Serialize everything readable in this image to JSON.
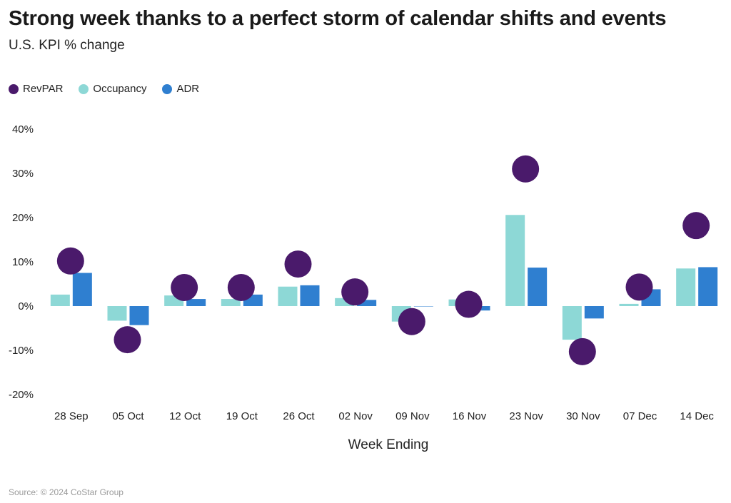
{
  "chart_data": {
    "type": "bar",
    "title": "Strong week thanks to a perfect storm of calendar shifts and events",
    "subtitle": "U.S. KPI % change",
    "xlabel": "Week Ending",
    "ylabel": "",
    "ylim": [
      -20,
      40
    ],
    "yticks": [
      40,
      30,
      20,
      10,
      0,
      -10,
      -20
    ],
    "ytick_labels": [
      "40%",
      "30%",
      "20%",
      "10%",
      "0%",
      "-10%",
      "-20%"
    ],
    "categories": [
      "28 Sep",
      "05 Oct",
      "12 Oct",
      "19 Oct",
      "26 Oct",
      "02 Nov",
      "09 Nov",
      "16 Nov",
      "23 Nov",
      "30 Nov",
      "07 Dec",
      "14 Dec"
    ],
    "series": [
      {
        "name": "RevPAR",
        "kind": "point",
        "color": "#4a1a6b",
        "values": [
          10.2,
          -7.6,
          4.2,
          4.2,
          9.5,
          3.2,
          -3.5,
          0.4,
          31.0,
          -10.3,
          4.3,
          18.2
        ]
      },
      {
        "name": "Occupancy",
        "kind": "bar",
        "color": "#8dd8d6",
        "values": [
          2.6,
          -3.3,
          2.4,
          1.6,
          4.4,
          1.8,
          -3.5,
          1.5,
          20.6,
          -7.6,
          0.5,
          8.5
        ]
      },
      {
        "name": "ADR",
        "kind": "bar",
        "color": "#2f7fd0",
        "values": [
          7.5,
          -4.3,
          1.6,
          2.6,
          4.7,
          1.4,
          0.0,
          -1.0,
          8.7,
          -2.8,
          3.8,
          8.8
        ]
      }
    ],
    "legend": "top-left",
    "grid": false
  },
  "source": "Source: © 2024 CoStar Group"
}
